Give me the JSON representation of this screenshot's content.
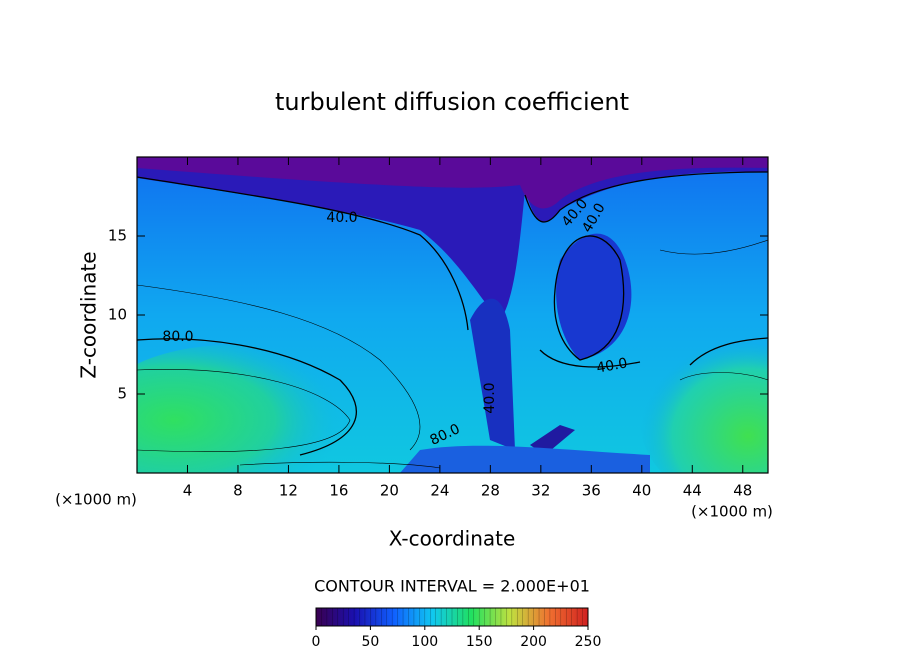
{
  "chart_data": {
    "type": "contour",
    "title": "turbulent diffusion coefficient",
    "xlabel": "X-coordinate",
    "ylabel": "Z-coordinate",
    "x_unit": "(×1000 m)",
    "y_unit": "(×1000 m)",
    "xlim": [
      0,
      50
    ],
    "xticks": [
      4,
      8,
      12,
      16,
      20,
      24,
      28,
      32,
      36,
      40,
      44,
      48
    ],
    "ylim": [
      0,
      20
    ],
    "yticks": [
      5,
      10,
      15
    ],
    "contour_labels": [
      {
        "value": 40,
        "label": "40.0"
      },
      {
        "value": 40,
        "label": "40.0"
      },
      {
        "value": 40,
        "label": "40.0"
      },
      {
        "value": 40,
        "label": "40.0"
      },
      {
        "value": 40,
        "label": "40.0"
      },
      {
        "value": 80,
        "label": "80.0"
      },
      {
        "value": 80,
        "label": "80.0"
      }
    ],
    "contour_interval": "CONTOUR INTERVAL = 2.000E+01",
    "colorbar_lim": [
      0,
      250
    ],
    "colorbar_ticks": [
      0,
      50,
      100,
      150,
      200,
      250
    ],
    "colormap": [
      "#3a0050",
      "#1a10b0",
      "#1060ff",
      "#10c8f0",
      "#20e060",
      "#c0e040",
      "#f07030",
      "#d02020"
    ]
  }
}
